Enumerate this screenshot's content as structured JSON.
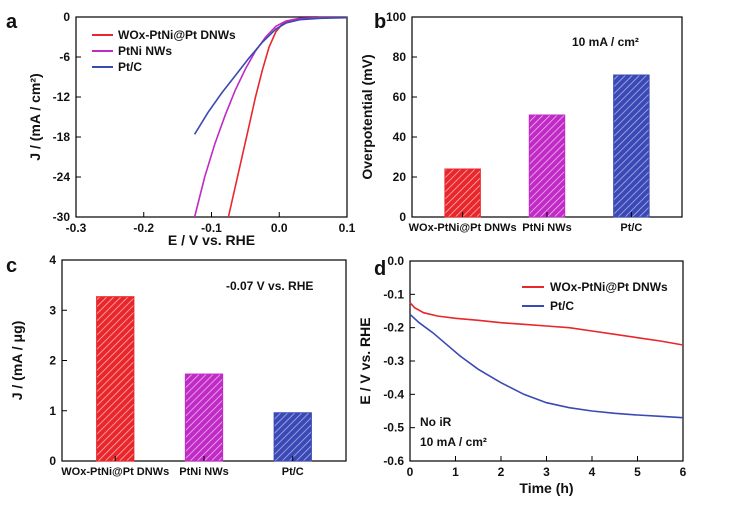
{
  "colors": {
    "red": "#e8262b",
    "magenta": "#c02bc6",
    "blue": "#3a49b4",
    "axis": "#000000"
  },
  "chart_data": [
    {
      "panel": "a",
      "type": "line",
      "xlabel": "E / V vs. RHE",
      "ylabel": "J / (mA / cm²)",
      "xlim": [
        -0.3,
        0.1
      ],
      "ylim": [
        -30,
        0
      ],
      "xticks": [
        "-0.3",
        "-0.2",
        "-0.1",
        "0.0",
        "0.1"
      ],
      "yticks": [
        "0",
        "-6",
        "-12",
        "-18",
        "-24",
        "-30"
      ],
      "legend": [
        "WOx-PtNi@Pt DNWs",
        "PtNi NWs",
        "Pt/C"
      ],
      "series": [
        {
          "name": "WOx-PtNi@Pt DNWs",
          "color": "red",
          "x": [
            -0.075,
            -0.065,
            -0.055,
            -0.045,
            -0.035,
            -0.025,
            -0.015,
            -0.005,
            0.005,
            0.02,
            0.04,
            0.06,
            0.1
          ],
          "y": [
            -30,
            -25.5,
            -21,
            -16.5,
            -12,
            -8,
            -4.5,
            -2.2,
            -1.0,
            -0.4,
            -0.2,
            -0.1,
            -0.1
          ]
        },
        {
          "name": "PtNi NWs",
          "color": "magenta",
          "x": [
            -0.125,
            -0.11,
            -0.095,
            -0.08,
            -0.065,
            -0.05,
            -0.035,
            -0.02,
            -0.005,
            0.01,
            0.03,
            0.06,
            0.1
          ],
          "y": [
            -30,
            -24,
            -19,
            -14.8,
            -11,
            -7.8,
            -5.1,
            -3.0,
            -1.4,
            -0.6,
            -0.2,
            -0.1,
            -0.1
          ]
        },
        {
          "name": "Pt/C",
          "color": "blue",
          "x": [
            -0.125,
            -0.105,
            -0.085,
            -0.065,
            -0.045,
            -0.025,
            -0.005,
            0.01,
            0.03,
            0.06,
            0.1
          ],
          "y": [
            -17.6,
            -14.3,
            -11.4,
            -8.8,
            -6.2,
            -3.8,
            -1.8,
            -0.9,
            -0.4,
            -0.2,
            -0.1
          ]
        }
      ]
    },
    {
      "panel": "b",
      "type": "bar",
      "annotation": "10 mA / cm²",
      "ylabel": "Overpotential (mV)",
      "ylim": [
        0,
        100
      ],
      "yticks": [
        "0",
        "20",
        "40",
        "60",
        "80",
        "100"
      ],
      "categories": [
        "WOx-PtNi@Pt DNWs",
        "PtNi NWs",
        "Pt/C"
      ],
      "values": [
        24,
        51,
        71
      ],
      "bar_colors": [
        "red",
        "magenta",
        "blue"
      ]
    },
    {
      "panel": "c",
      "type": "bar",
      "annotation": "-0.07 V vs. RHE",
      "ylabel": "J / (mA / μg)",
      "ylim": [
        0,
        4
      ],
      "yticks": [
        "0",
        "1",
        "2",
        "3",
        "4"
      ],
      "categories": [
        "WOx-PtNi@Pt DNWs",
        "PtNi NWs",
        "Pt/C"
      ],
      "values": [
        3.27,
        1.73,
        0.96
      ],
      "bar_colors": [
        "red",
        "magenta",
        "blue"
      ]
    },
    {
      "panel": "d",
      "type": "line",
      "xlabel": "Time (h)",
      "ylabel": "E / V vs. RHE",
      "xlim": [
        0,
        6
      ],
      "ylim": [
        -0.6,
        0.0
      ],
      "xticks": [
        "0",
        "1",
        "2",
        "3",
        "4",
        "5",
        "6"
      ],
      "yticks": [
        "0.0",
        "-0.1",
        "-0.2",
        "-0.3",
        "-0.4",
        "-0.5",
        "-0.6"
      ],
      "legend": [
        "WOx-PtNi@Pt DNWs",
        "Pt/C"
      ],
      "annotations": [
        "No iR",
        "10 mA / cm²"
      ],
      "series": [
        {
          "name": "WOx-PtNi@Pt DNWs",
          "color": "red",
          "x": [
            0,
            0.1,
            0.3,
            0.6,
            1,
            1.5,
            2,
            2.5,
            3,
            3.5,
            4,
            4.5,
            5,
            5.5,
            6
          ],
          "y": [
            -0.125,
            -0.14,
            -0.155,
            -0.165,
            -0.172,
            -0.178,
            -0.185,
            -0.19,
            -0.195,
            -0.2,
            -0.21,
            -0.22,
            -0.23,
            -0.24,
            -0.252
          ]
        },
        {
          "name": "Pt/C",
          "color": "blue",
          "x": [
            0,
            0.2,
            0.5,
            0.8,
            1.1,
            1.5,
            2,
            2.5,
            3,
            3.5,
            4,
            4.5,
            5,
            5.5,
            6
          ],
          "y": [
            -0.16,
            -0.185,
            -0.215,
            -0.25,
            -0.285,
            -0.325,
            -0.365,
            -0.4,
            -0.425,
            -0.44,
            -0.45,
            -0.457,
            -0.462,
            -0.466,
            -0.47
          ]
        }
      ]
    }
  ],
  "panel_letters": [
    "a",
    "b",
    "c",
    "d"
  ]
}
